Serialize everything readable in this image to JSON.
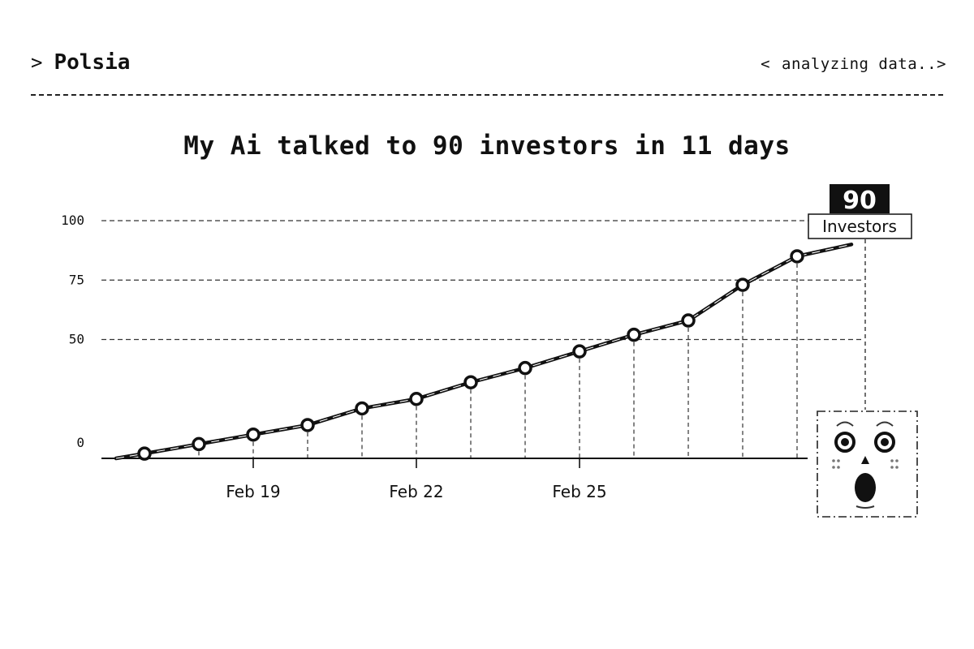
{
  "header": {
    "prompt_glyph": ">",
    "brand": "Polsia",
    "status_open": "<",
    "status_text": "analyzing data..",
    "status_close": ">"
  },
  "chart_data": {
    "type": "line",
    "title": "My Ai talked to 90 investors in 11 days",
    "xlabel": "",
    "ylabel": "",
    "yticks": [
      0,
      50,
      75,
      100
    ],
    "ylim": [
      0,
      100
    ],
    "xticks": [
      "Feb 19",
      "Feb 22",
      "Feb 25"
    ],
    "x": [
      "Feb 17",
      "Feb 18",
      "Feb 19",
      "Feb 20",
      "Feb 21",
      "Feb 22",
      "Feb 23",
      "Feb 24",
      "Feb 25",
      "Feb 26",
      "Feb 27",
      "Feb 28",
      "Mar 1",
      "Mar 2"
    ],
    "series": [
      {
        "values": [
          2,
          6,
          10,
          14,
          21,
          25,
          32,
          38,
          45,
          52,
          58,
          73,
          85,
          90
        ]
      }
    ],
    "grid": true,
    "callout": {
      "value": "90",
      "label": "Investors"
    }
  }
}
